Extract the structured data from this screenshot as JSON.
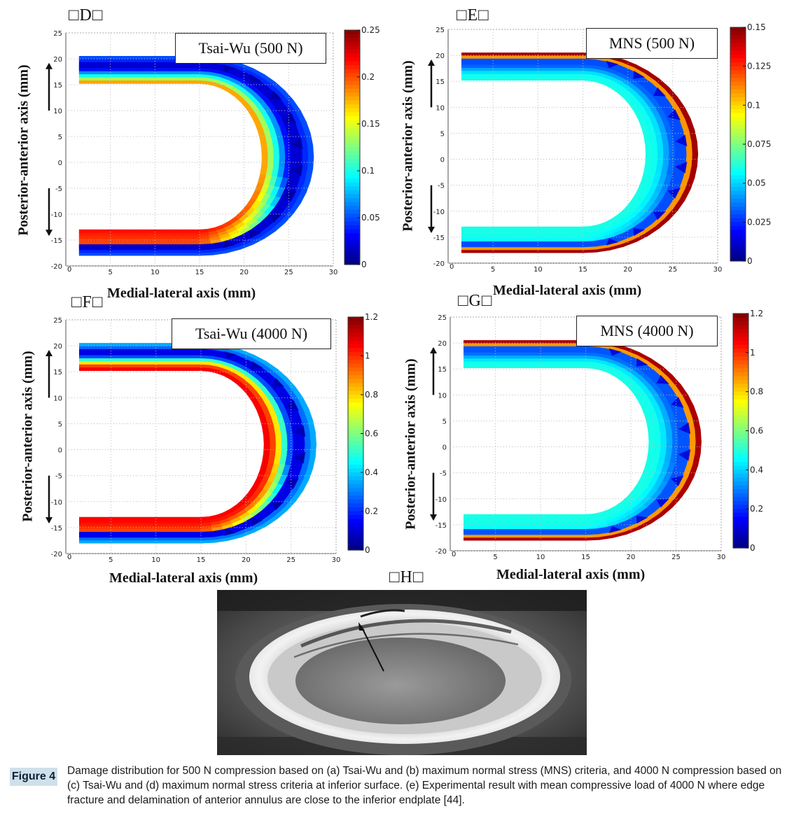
{
  "chart_data": [
    {
      "id": "D",
      "type": "heatmap",
      "panel_label": "□D□",
      "title": "Tsai-Wu (500 N)",
      "xlabel": "Medial-lateral axis (mm)",
      "ylabel": "Posterior-anterior axis (mm)",
      "xlim": [
        0,
        30
      ],
      "ylim": [
        -20,
        25
      ],
      "xticks": [
        5,
        10,
        15,
        20,
        25,
        30
      ],
      "yticks": [
        25,
        20,
        15,
        10,
        5,
        0,
        -5,
        -10,
        -15,
        -20
      ],
      "colorbar": {
        "min": 0,
        "max": 0.25,
        "ticks": [
          "0.25",
          "0.2",
          "0.15",
          "0.1",
          "0.05",
          "0"
        ]
      },
      "profile": {
        "outer": 0.05,
        "ring": 0.02,
        "inner": 0.12,
        "innerEdge": 0.2,
        "posterior": 0.22
      }
    },
    {
      "id": "E",
      "type": "heatmap",
      "panel_label": "□E□",
      "title": "MNS (500 N)",
      "xlabel": "Medial-lateral axis (mm)",
      "ylabel": "Posterior-anterior axis (mm)",
      "xlim": [
        0,
        30
      ],
      "ylim": [
        -20,
        25
      ],
      "xticks": [
        5,
        10,
        15,
        20,
        25,
        30
      ],
      "yticks": [
        25,
        20,
        15,
        10,
        5,
        0,
        -5,
        -10,
        -15,
        -20
      ],
      "colorbar": {
        "min": 0,
        "max": 0.15,
        "ticks": [
          "0.15",
          "0.125",
          "0.1",
          "0.075",
          "0.05",
          "0.025",
          "0"
        ]
      },
      "profile": {
        "outer": 0.145,
        "ring": 0.03,
        "inner": 0.058,
        "innerEdge": 0.06,
        "posterior": 0.06
      }
    },
    {
      "id": "F",
      "type": "heatmap",
      "panel_label": "□F□",
      "title": "Tsai-Wu (4000 N)",
      "xlabel": "Medial-lateral axis (mm)",
      "ylabel": "Posterior-anterior axis (mm)",
      "xlim": [
        0,
        30
      ],
      "ylim": [
        -20,
        25
      ],
      "xticks": [
        5,
        10,
        15,
        20,
        25,
        30
      ],
      "yticks": [
        25,
        20,
        15,
        10,
        5,
        0,
        -5,
        -10,
        -15,
        -20
      ],
      "colorbar": {
        "min": 0,
        "max": 1.2,
        "ticks": [
          "1.2",
          "1",
          "0.8",
          "0.6",
          "0.4",
          "0.2",
          "0"
        ]
      },
      "profile": {
        "outer": 0.35,
        "ring": 0.12,
        "inner": 0.95,
        "innerEdge": 1.1,
        "posterior": 1.05
      }
    },
    {
      "id": "G",
      "type": "heatmap",
      "panel_label": "□G□",
      "title": "MNS (4000 N)",
      "xlabel": "Medial-lateral axis (mm)",
      "ylabel": "Posterior-anterior axis (mm)",
      "xlim": [
        0,
        30
      ],
      "ylim": [
        -20,
        25
      ],
      "xticks": [
        5,
        10,
        15,
        20,
        25,
        30
      ],
      "yticks": [
        25,
        20,
        15,
        10,
        5,
        0,
        -5,
        -10,
        -15,
        -20
      ],
      "colorbar": {
        "min": 0,
        "max": 1.2,
        "ticks": [
          "1.2",
          "1",
          "0.8",
          "0.6",
          "0.4",
          "0.2",
          "0"
        ]
      },
      "profile": {
        "outer": 1.15,
        "ring": 0.25,
        "inner": 0.47,
        "innerEdge": 0.48,
        "posterior": 0.48
      }
    }
  ],
  "photo": {
    "panel_label": "□H□"
  },
  "caption": {
    "label": "Figure 4",
    "text": "Damage distribution for 500 N compression based on (a) Tsai-Wu and (b) maximum normal stress (MNS) criteria, and 4000 N compression based on (c) Tsai-Wu and (d) maximum normal stress criteria at inferior surface. (e) Experimental result with mean compressive load of 4000 N where edge fracture and delamination of anterior annulus are close to the inferior endplate [44]."
  },
  "colors": {
    "jet_low": "#00008f",
    "jet_high": "#800000"
  }
}
